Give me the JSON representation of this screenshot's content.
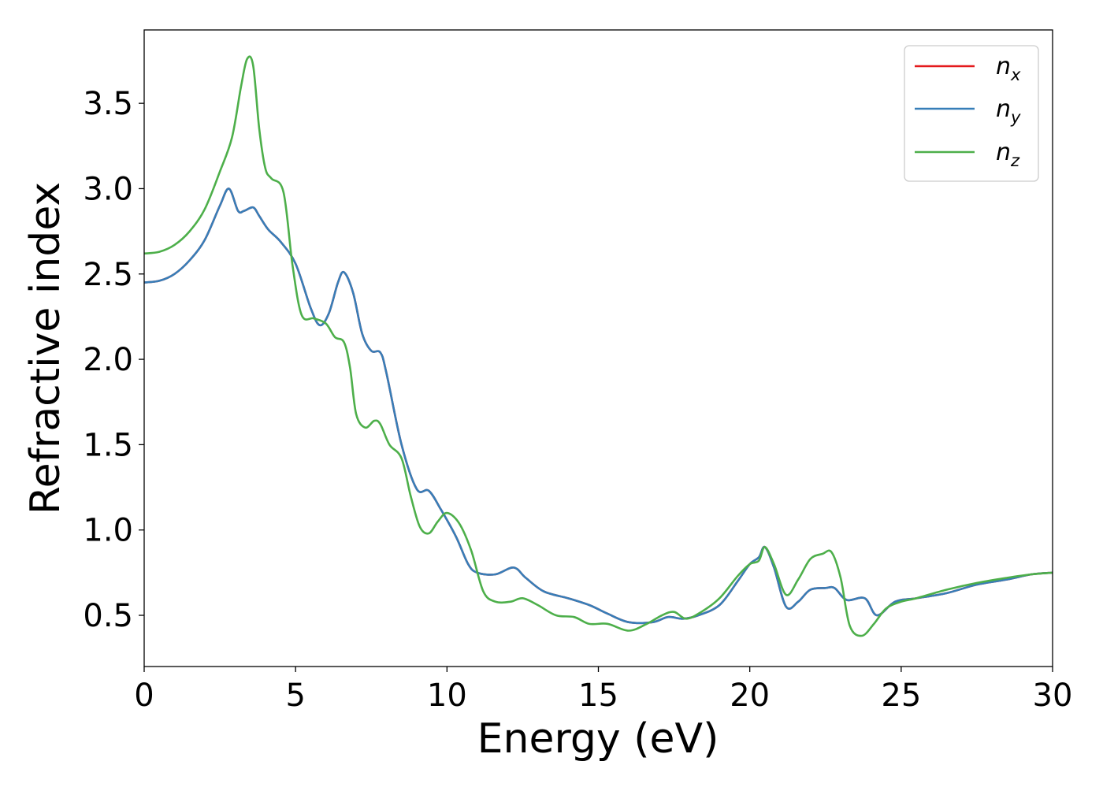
{
  "chart_data": {
    "type": "line",
    "title": "",
    "xlabel": "Energy (eV)",
    "ylabel": "Refractive index",
    "xlim": [
      0,
      30
    ],
    "ylim": [
      0.2,
      3.93
    ],
    "xticks": [
      0,
      5,
      10,
      15,
      20,
      25,
      30
    ],
    "yticks": [
      0.5,
      1.0,
      1.5,
      2.0,
      2.5,
      3.0,
      3.5
    ],
    "grid": false,
    "legend_position": "top-right",
    "series": [
      {
        "name": "n",
        "subscript": "x",
        "color": "#e41a1c",
        "x": [
          0,
          0.5,
          1,
          1.5,
          2,
          2.5,
          2.8,
          3.1,
          3.3,
          3.6,
          3.8,
          4.1,
          4.5,
          5,
          5.5,
          5.8,
          6.1,
          6.4,
          6.6,
          6.9,
          7.2,
          7.5,
          7.8,
          8,
          8.5,
          9,
          9.4,
          9.8,
          10.3,
          10.7,
          11,
          11.6,
          12.2,
          12.6,
          13.2,
          14,
          14.7,
          15.3,
          16,
          16.8,
          17.3,
          17.8,
          18.3,
          19,
          19.6,
          20,
          20.3,
          20.5,
          20.8,
          21.2,
          21.6,
          22,
          22.5,
          22.8,
          23.2,
          23.8,
          24.2,
          24.8,
          25.5,
          26.5,
          27.5,
          28.5,
          29.3,
          30
        ],
        "y": [
          2.45,
          2.46,
          2.5,
          2.58,
          2.7,
          2.9,
          3.0,
          2.87,
          2.87,
          2.89,
          2.84,
          2.76,
          2.69,
          2.56,
          2.3,
          2.2,
          2.27,
          2.45,
          2.51,
          2.39,
          2.15,
          2.05,
          2.04,
          1.92,
          1.5,
          1.24,
          1.23,
          1.12,
          0.96,
          0.8,
          0.75,
          0.74,
          0.78,
          0.72,
          0.64,
          0.6,
          0.56,
          0.51,
          0.46,
          0.46,
          0.49,
          0.48,
          0.5,
          0.56,
          0.7,
          0.8,
          0.84,
          0.9,
          0.78,
          0.55,
          0.58,
          0.65,
          0.66,
          0.66,
          0.59,
          0.6,
          0.5,
          0.58,
          0.6,
          0.63,
          0.68,
          0.71,
          0.74,
          0.75
        ]
      },
      {
        "name": "n",
        "subscript": "y",
        "color": "#377eb8",
        "x": [
          0,
          0.5,
          1,
          1.5,
          2,
          2.5,
          2.8,
          3.1,
          3.3,
          3.6,
          3.8,
          4.1,
          4.5,
          5,
          5.5,
          5.8,
          6.1,
          6.4,
          6.6,
          6.9,
          7.2,
          7.5,
          7.8,
          8,
          8.5,
          9,
          9.4,
          9.8,
          10.3,
          10.7,
          11,
          11.6,
          12.2,
          12.6,
          13.2,
          14,
          14.7,
          15.3,
          16,
          16.8,
          17.3,
          17.8,
          18.3,
          19,
          19.6,
          20,
          20.3,
          20.5,
          20.8,
          21.2,
          21.6,
          22,
          22.5,
          22.8,
          23.2,
          23.8,
          24.2,
          24.8,
          25.5,
          26.5,
          27.5,
          28.5,
          29.3,
          30
        ],
        "y": [
          2.45,
          2.46,
          2.5,
          2.58,
          2.7,
          2.9,
          3.0,
          2.87,
          2.87,
          2.89,
          2.84,
          2.76,
          2.69,
          2.56,
          2.3,
          2.2,
          2.27,
          2.45,
          2.51,
          2.39,
          2.15,
          2.05,
          2.04,
          1.92,
          1.5,
          1.24,
          1.23,
          1.12,
          0.96,
          0.8,
          0.75,
          0.74,
          0.78,
          0.72,
          0.64,
          0.6,
          0.56,
          0.51,
          0.46,
          0.46,
          0.49,
          0.48,
          0.5,
          0.56,
          0.7,
          0.8,
          0.84,
          0.9,
          0.78,
          0.55,
          0.58,
          0.65,
          0.66,
          0.66,
          0.59,
          0.6,
          0.5,
          0.58,
          0.6,
          0.63,
          0.68,
          0.71,
          0.74,
          0.75
        ]
      },
      {
        "name": "n",
        "subscript": "z",
        "color": "#4daf4a",
        "x": [
          0,
          0.5,
          1,
          1.5,
          2,
          2.5,
          2.9,
          3.2,
          3.4,
          3.6,
          3.8,
          4.0,
          4.2,
          4.6,
          4.9,
          5.2,
          5.6,
          6.0,
          6.3,
          6.6,
          6.8,
          7.0,
          7.3,
          7.6,
          7.8,
          8.1,
          8.5,
          8.8,
          9.1,
          9.4,
          9.7,
          10.0,
          10.4,
          10.8,
          11.2,
          11.6,
          12.1,
          12.5,
          13.0,
          13.6,
          14.2,
          14.7,
          15.3,
          16.0,
          16.6,
          17.1,
          17.5,
          17.9,
          18.4,
          19.0,
          19.6,
          20.0,
          20.3,
          20.5,
          20.8,
          21.2,
          21.6,
          22.0,
          22.4,
          22.7,
          23.0,
          23.3,
          23.7,
          24.1,
          24.5,
          25.0,
          25.5,
          26.5,
          27.5,
          28.5,
          29.3,
          30
        ],
        "y": [
          2.62,
          2.63,
          2.67,
          2.75,
          2.88,
          3.1,
          3.3,
          3.6,
          3.76,
          3.72,
          3.35,
          3.12,
          3.06,
          2.98,
          2.55,
          2.26,
          2.24,
          2.21,
          2.13,
          2.1,
          1.95,
          1.68,
          1.6,
          1.64,
          1.62,
          1.5,
          1.42,
          1.2,
          1.02,
          0.98,
          1.05,
          1.1,
          1.04,
          0.88,
          0.64,
          0.58,
          0.58,
          0.6,
          0.56,
          0.5,
          0.49,
          0.45,
          0.45,
          0.41,
          0.45,
          0.5,
          0.52,
          0.48,
          0.52,
          0.6,
          0.73,
          0.8,
          0.82,
          0.9,
          0.8,
          0.62,
          0.71,
          0.83,
          0.86,
          0.87,
          0.72,
          0.44,
          0.38,
          0.45,
          0.54,
          0.58,
          0.6,
          0.65,
          0.69,
          0.72,
          0.74,
          0.75
        ]
      }
    ]
  }
}
